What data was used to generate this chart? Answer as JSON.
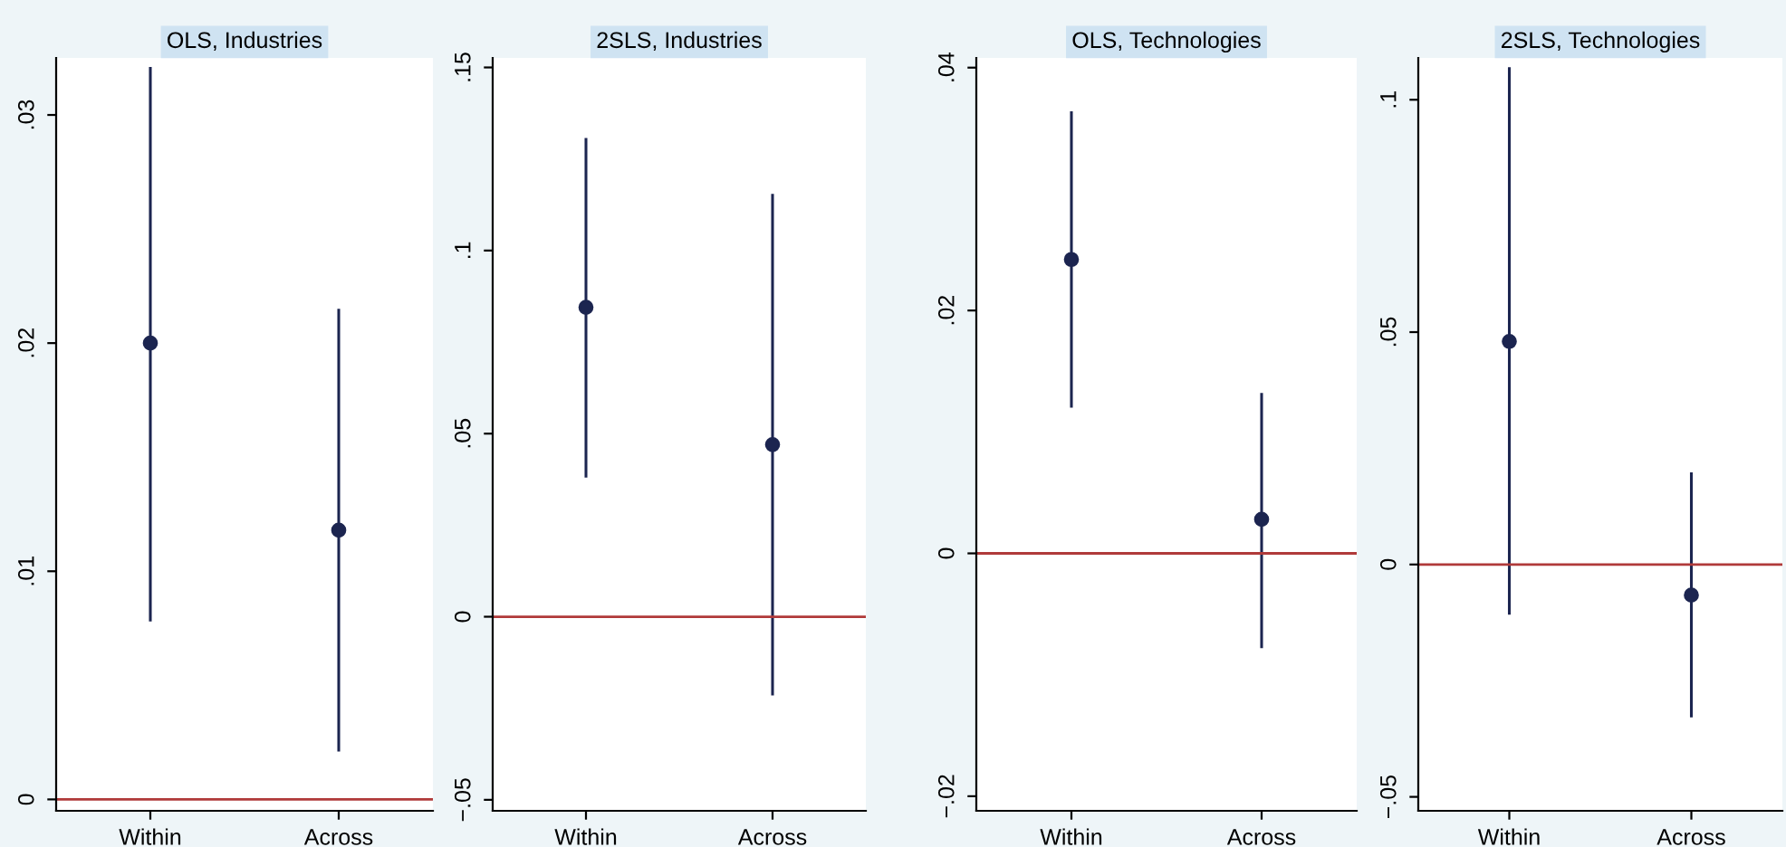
{
  "chart_data": [
    {
      "type": "scatter",
      "title": "OLS, Industries",
      "categories": [
        "Within",
        "Across"
      ],
      "series": [
        {
          "color": "#1c2550",
          "values": [
            0.02,
            0.0118
          ],
          "errors": [
            [
              0.0078,
              0.0321
            ],
            [
              0.0021,
              0.0215
            ]
          ]
        }
      ],
      "ylim": [
        -0.0005,
        0.0325
      ],
      "yticks": [
        {
          "value": 0,
          "label": "0"
        },
        {
          "value": 0.01,
          "label": ".01"
        },
        {
          "value": 0.02,
          "label": ".02"
        },
        {
          "value": 0.03,
          "label": ".03"
        }
      ],
      "ref_lines": [
        {
          "axis": "y",
          "value": 0,
          "color": "#b03a3a"
        }
      ],
      "marker": "circle",
      "grid": false,
      "legend": false
    },
    {
      "type": "scatter",
      "title": "2SLS, Industries",
      "categories": [
        "Within",
        "Across"
      ],
      "series": [
        {
          "color": "#1c2550",
          "values": [
            0.0845,
            0.047
          ],
          "errors": [
            [
              0.038,
              0.1307
            ],
            [
              -0.0215,
              0.1155
            ]
          ]
        }
      ],
      "ylim": [
        -0.053,
        0.1526
      ],
      "yticks": [
        {
          "value": -0.05,
          "label": "−.05"
        },
        {
          "value": 0,
          "label": "0"
        },
        {
          "value": 0.05,
          "label": ".05"
        },
        {
          "value": 0.1,
          "label": ".1"
        },
        {
          "value": 0.15,
          "label": ".15"
        }
      ],
      "ref_lines": [
        {
          "axis": "y",
          "value": 0,
          "color": "#b03a3a"
        }
      ],
      "marker": "circle",
      "grid": false,
      "legend": false
    },
    {
      "type": "scatter",
      "title": "OLS, Technologies",
      "categories": [
        "Within",
        "Across"
      ],
      "series": [
        {
          "color": "#1c2550",
          "values": [
            0.0242,
            0.0028
          ],
          "errors": [
            [
              0.012,
              0.0364
            ],
            [
              -0.0078,
              0.0132
            ]
          ]
        }
      ],
      "ylim": [
        -0.0212,
        0.0408
      ],
      "yticks": [
        {
          "value": -0.02,
          "label": "−.02"
        },
        {
          "value": 0,
          "label": "0"
        },
        {
          "value": 0.02,
          "label": ".02"
        },
        {
          "value": 0.04,
          "label": ".04"
        }
      ],
      "ref_lines": [
        {
          "axis": "y",
          "value": 0,
          "color": "#b03a3a"
        }
      ],
      "marker": "circle",
      "grid": false,
      "legend": false
    },
    {
      "type": "scatter",
      "title": "2SLS, Technologies",
      "categories": [
        "Within",
        "Across"
      ],
      "series": [
        {
          "color": "#1c2550",
          "values": [
            0.048,
            -0.0066
          ],
          "errors": [
            [
              -0.0108,
              0.107
            ],
            [
              -0.0329,
              0.0198
            ]
          ]
        }
      ],
      "ylim": [
        -0.053,
        0.109
      ],
      "yticks": [
        {
          "value": -0.05,
          "label": "−.05"
        },
        {
          "value": 0,
          "label": "0"
        },
        {
          "value": 0.05,
          "label": ".05"
        },
        {
          "value": 0.1,
          "label": ".1"
        }
      ],
      "ref_lines": [
        {
          "axis": "y",
          "value": 0,
          "color": "#b03a3a"
        }
      ],
      "marker": "circle",
      "grid": false,
      "legend": false
    }
  ]
}
